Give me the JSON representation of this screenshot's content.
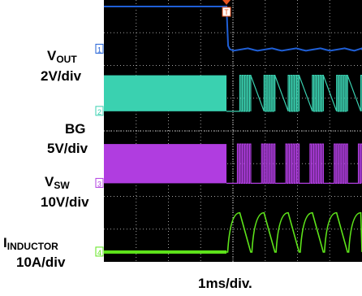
{
  "chart_data": {
    "type": "line",
    "subtype": "oscilloscope-capture",
    "x_division": "1ms/div.",
    "divisions": {
      "x": 10,
      "y": 8
    },
    "grid": "dotted",
    "background": "#000000",
    "trigger_marker": "T",
    "channels": [
      {
        "number": "1",
        "name_main": "V",
        "name_sub": "OUT",
        "scale": "2V/div",
        "color": "#1f5fd6",
        "description_values": {
          "before_event_div": 7.8,
          "after_event_div": 6.5
        }
      },
      {
        "number": "2",
        "name_main": "BG",
        "name_sub": "",
        "scale": "5V/div",
        "color": "#3ad1b0",
        "description_values": {
          "low_div": 4.6,
          "high_div": 5.7
        }
      },
      {
        "number": "3",
        "name_main": "V",
        "name_sub": "SW",
        "scale": "10V/div",
        "color": "#b03de0",
        "description_values": {
          "low_div": 2.4,
          "high_div": 3.6
        }
      },
      {
        "number": "4",
        "name_main": "I",
        "name_sub": "INDUCTOR",
        "scale": "10A/div",
        "color": "#5ee51a",
        "description_values": {
          "baseline_div": 0.3,
          "peak_div": 1.5
        }
      }
    ],
    "event_time_div": 3.8,
    "pulse_period_div": 0.75
  },
  "colors": {
    "trigger": "#e8541f",
    "grid": "#a0a0a0"
  }
}
